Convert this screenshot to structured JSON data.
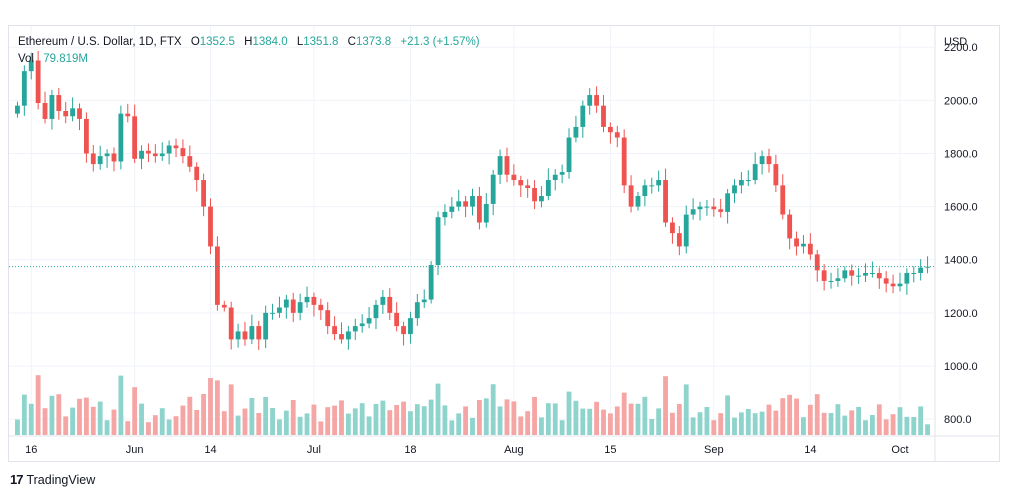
{
  "legend": {
    "symbol": "Ethereum / U.S. Dollar, 1D, FTX",
    "o_label": "O",
    "o_value": "1352.5",
    "h_label": "H",
    "h_value": "1384.0",
    "l_label": "L",
    "l_value": "1351.8",
    "c_label": "C",
    "c_value": "1373.8",
    "change": "+21.3 (+1.57%)",
    "vol_label": "Vol",
    "vol_value": "79.819M"
  },
  "brand": "TradingView",
  "colors": {
    "up": "#26a69a",
    "down": "#ef5350",
    "up_vol": "#8fd3cd",
    "down_vol": "#f5a5a4",
    "grid": "#f0f3fa",
    "last_price_line": "#26a69a"
  },
  "chart_data": {
    "type": "candlestick",
    "currency_label": "USD",
    "y_ticks": [
      "2200.0",
      "2000.0",
      "1800.0",
      "1600.0",
      "1400.0",
      "1200.0",
      "1000.0",
      "800.0"
    ],
    "x_ticks": [
      "16",
      "Jun",
      "14",
      "Jul",
      "18",
      "Aug",
      "15",
      "Sep",
      "14",
      "Oct"
    ],
    "last_close": 1373.8,
    "close": [
      1980,
      2110,
      2150,
      1990,
      1930,
      2020,
      1960,
      1940,
      1970,
      1930,
      1800,
      1760,
      1790,
      1800,
      1770,
      1950,
      1940,
      1780,
      1810,
      1800,
      1790,
      1800,
      1830,
      1820,
      1790,
      1750,
      1700,
      1600,
      1450,
      1230,
      1220,
      1100,
      1130,
      1100,
      1150,
      1100,
      1200,
      1200,
      1220,
      1250,
      1200,
      1240,
      1260,
      1230,
      1210,
      1150,
      1120,
      1100,
      1130,
      1150,
      1160,
      1180,
      1230,
      1260,
      1200,
      1150,
      1120,
      1180,
      1240,
      1250,
      1380,
      1560,
      1580,
      1600,
      1620,
      1600,
      1640,
      1540,
      1610,
      1720,
      1790,
      1720,
      1700,
      1680,
      1670,
      1620,
      1640,
      1700,
      1720,
      1730,
      1860,
      1900,
      1980,
      2020,
      1980,
      1900,
      1880,
      1860,
      1680,
      1600,
      1640,
      1680,
      1680,
      1700,
      1540,
      1500,
      1450,
      1570,
      1590,
      1600,
      1600,
      1590,
      1580,
      1650,
      1680,
      1700,
      1700,
      1760,
      1790,
      1760,
      1680,
      1570,
      1480,
      1450,
      1460,
      1420,
      1360,
      1320,
      1320,
      1330,
      1360,
      1340,
      1340,
      1350,
      1350,
      1330,
      1310,
      1300,
      1310,
      1350,
      1350,
      1370,
      1373.8
    ],
    "volume_scale_note": "volume bars relative, no axis printed"
  }
}
